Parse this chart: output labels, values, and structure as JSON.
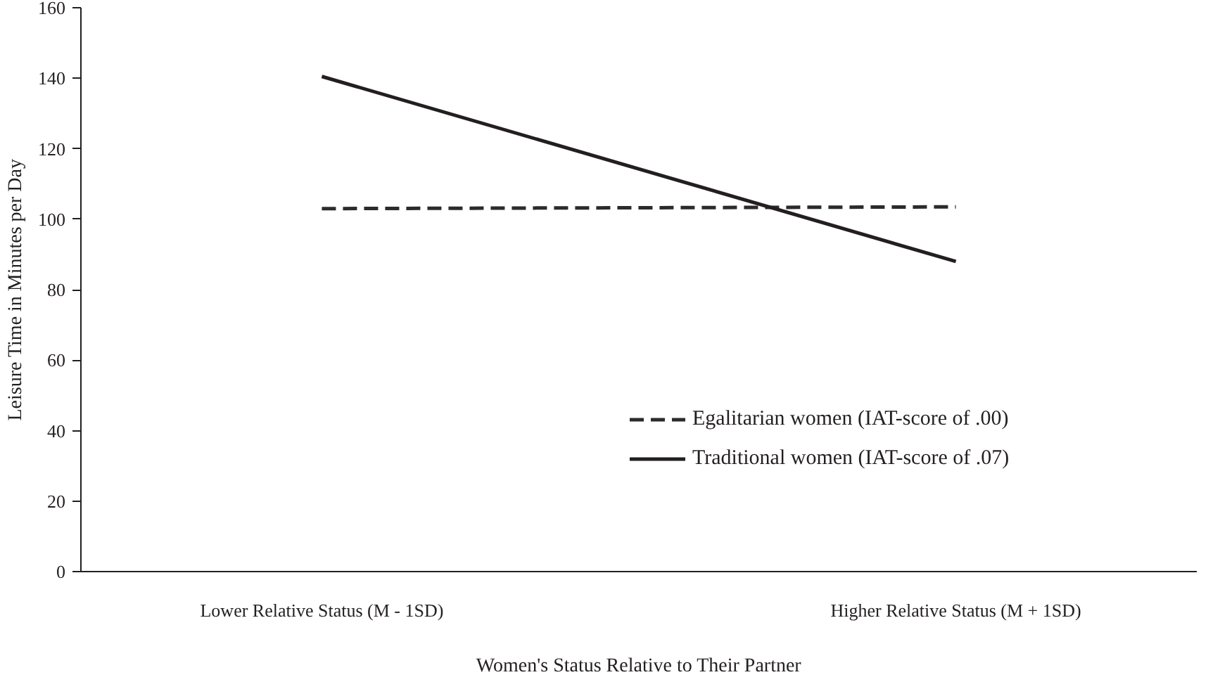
{
  "chart_data": {
    "type": "line",
    "xlabel": "Women's Status Relative to Their Partner",
    "ylabel": "Leisure Time in Minutes per Day",
    "categories": [
      "Lower Relative Status (M - 1SD)",
      "Higher Relative Status (M + 1SD)"
    ],
    "series": [
      {
        "name": "Egalitarian women (IAT-score of .00)",
        "color": "#2b2b2b",
        "values": [
          103,
          103.5
        ],
        "line_style": "dashed"
      },
      {
        "name": "Traditional women (IAT-score of .07)",
        "color": "#231f20",
        "values": [
          140.5,
          88
        ],
        "line_style": "solid"
      }
    ],
    "ylim": [
      0,
      160
    ],
    "yticks": [
      0,
      20,
      40,
      60,
      80,
      100,
      120,
      140,
      160
    ],
    "grid": false,
    "legend": "right",
    "marker": "none"
  }
}
